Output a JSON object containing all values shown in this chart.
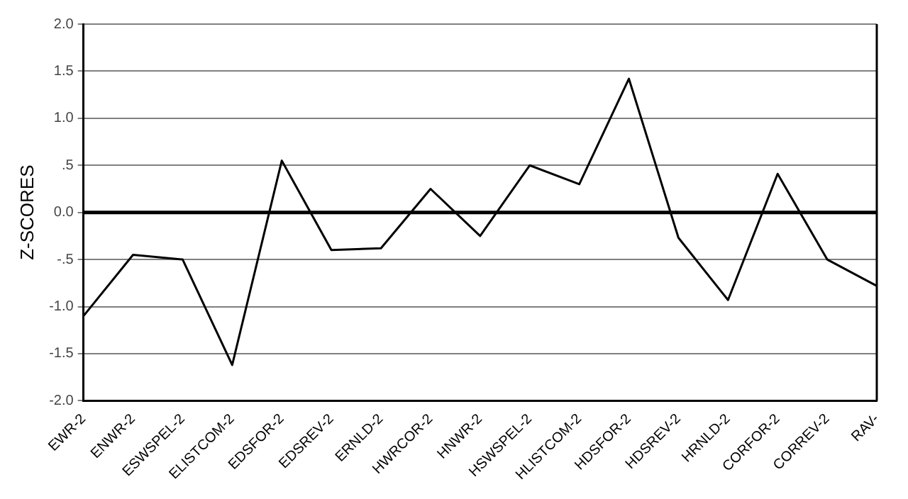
{
  "chart_data": {
    "type": "line",
    "ylabel": "Z-SCORES",
    "categories": [
      "EWR-2",
      "ENWR-2",
      "ESWSPEL-2",
      "ELISTCOM-2",
      "EDSFOR-2",
      "EDSREV-2",
      "ERNLD-2",
      "HWRCOR-2",
      "HNWR-2",
      "HSWSPEL-2",
      "HLISTCOM-2",
      "HDSFOR-2",
      "HDSREV-2",
      "HRNLD-2",
      "CORFOR-2",
      "CORREV-2",
      "RAV-"
    ],
    "series": [
      {
        "color": "#000000",
        "values": [
          -1.1,
          -0.45,
          -0.5,
          -1.62,
          0.55,
          -0.4,
          -0.38,
          0.25,
          -0.25,
          0.5,
          0.3,
          1.42,
          -0.27,
          -0.93,
          0.41,
          -0.5,
          -0.78
        ]
      }
    ],
    "ylim": [
      -2,
      2
    ],
    "yticks": [
      {
        "value": -2,
        "label": "-2.0"
      },
      {
        "value": -1.5,
        "label": "-1.5"
      },
      {
        "value": -1,
        "label": "-1.0"
      },
      {
        "value": -0.5,
        "label": "-.5"
      },
      {
        "value": 0,
        "label": "0.0"
      },
      {
        "value": 0.5,
        "label": ".5"
      },
      {
        "value": 1,
        "label": "1.0"
      },
      {
        "value": 1.5,
        "label": "1.5"
      },
      {
        "value": 2,
        "label": "2.0"
      }
    ],
    "grid": "y",
    "legend": false,
    "marker": "none",
    "line_style": "solid",
    "ref_lines": [
      {
        "axis": "y",
        "value": 0,
        "color": "#000000"
      }
    ]
  }
}
